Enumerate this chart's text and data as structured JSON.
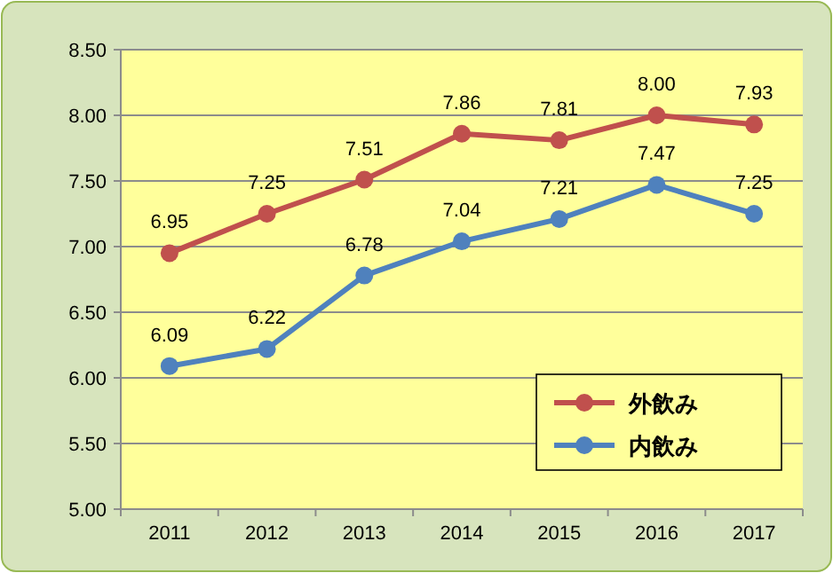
{
  "chart_data": {
    "type": "line",
    "categories": [
      "2011",
      "2012",
      "2013",
      "2014",
      "2015",
      "2016",
      "2017"
    ],
    "series": [
      {
        "name": "外飲み",
        "color": "#c0504d",
        "values": [
          6.95,
          7.25,
          7.51,
          7.86,
          7.81,
          8.0,
          7.93
        ],
        "value_labels": [
          "6.95",
          "7.25",
          "7.51",
          "7.86",
          "7.81",
          "8.00",
          "7.93"
        ]
      },
      {
        "name": "内飲み",
        "color": "#4f81bd",
        "values": [
          6.09,
          6.22,
          6.78,
          7.04,
          7.21,
          7.47,
          7.25
        ],
        "value_labels": [
          "6.09",
          "6.22",
          "6.78",
          "7.04",
          "7.21",
          "7.47",
          "7.25"
        ]
      }
    ],
    "ylim": [
      5,
      8.5
    ],
    "yticks": [
      {
        "value": 5,
        "label": "5.00"
      },
      {
        "value": 5.5,
        "label": "5.50"
      },
      {
        "value": 6,
        "label": "6.00"
      },
      {
        "value": 6.5,
        "label": "6.50"
      },
      {
        "value": 7,
        "label": "7.00"
      },
      {
        "value": 7.5,
        "label": "7.50"
      },
      {
        "value": 8,
        "label": "8.00"
      },
      {
        "value": 8.5,
        "label": "8.50"
      }
    ],
    "grid": "y",
    "legend": "bottom right",
    "marker": "circle",
    "line_style": "solid"
  }
}
